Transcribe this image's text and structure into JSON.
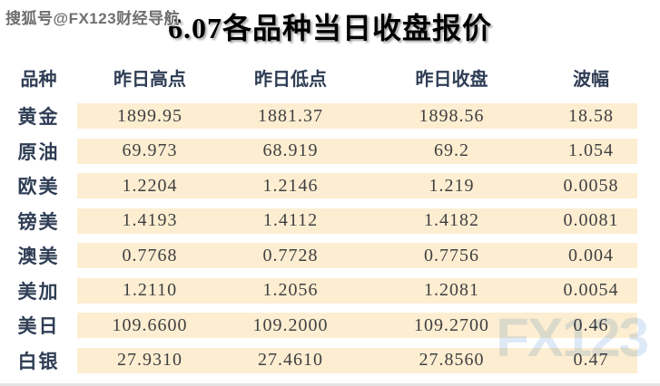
{
  "watermark_top": "搜狐号@FX123财经导航",
  "watermark_bottom": "FX123",
  "title": "6.07各品种当日收盘报价",
  "colors": {
    "row_stripe_bg": "#fdeed2",
    "header_text": "#2f3e55",
    "instrument_text": "#2f3e55",
    "number_text": "#404040",
    "title_text": "#000000",
    "bottom_watermark_blue": "#aecbe9"
  },
  "table": {
    "headers": [
      "品种",
      "昨日高点",
      "昨日低点",
      "昨日收盘",
      "波幅"
    ],
    "rows": [
      {
        "name": "黄金",
        "high": "1899.95",
        "low": "1881.37",
        "close": "1898.56",
        "range": "18.58"
      },
      {
        "name": "原油",
        "high": "69.973",
        "low": "68.919",
        "close": "69.2",
        "range": "1.054"
      },
      {
        "name": "欧美",
        "high": "1.2204",
        "low": "1.2146",
        "close": "1.219",
        "range": "0.0058"
      },
      {
        "name": "镑美",
        "high": "1.4193",
        "low": "1.4112",
        "close": "1.4182",
        "range": "0.0081"
      },
      {
        "name": "澳美",
        "high": "0.7768",
        "low": "0.7728",
        "close": "0.7756",
        "range": "0.004"
      },
      {
        "name": "美加",
        "high": "1.2110",
        "low": "1.2056",
        "close": "1.2081",
        "range": "0.0054"
      },
      {
        "name": "美日",
        "high": "109.6600",
        "low": "109.2000",
        "close": "109.2700",
        "range": "0.46"
      },
      {
        "name": "白银",
        "high": "27.9310",
        "low": "27.4610",
        "close": "27.8560",
        "range": "0.47"
      }
    ]
  },
  "chart_data": {
    "type": "table",
    "title": "6.07各品种当日收盘报价",
    "columns": [
      "品种",
      "昨日高点",
      "昨日低点",
      "昨日收盘",
      "波幅"
    ],
    "rows": [
      [
        "黄金",
        1899.95,
        1881.37,
        1898.56,
        18.58
      ],
      [
        "原油",
        69.973,
        68.919,
        69.2,
        1.054
      ],
      [
        "欧美",
        1.2204,
        1.2146,
        1.219,
        0.0058
      ],
      [
        "镑美",
        1.4193,
        1.4112,
        1.4182,
        0.0081
      ],
      [
        "澳美",
        0.7768,
        0.7728,
        0.7756,
        0.004
      ],
      [
        "美加",
        1.211,
        1.2056,
        1.2081,
        0.0054
      ],
      [
        "美日",
        109.66,
        109.2,
        109.27,
        0.46
      ],
      [
        "白银",
        27.931,
        27.461,
        27.856,
        0.47
      ]
    ]
  }
}
